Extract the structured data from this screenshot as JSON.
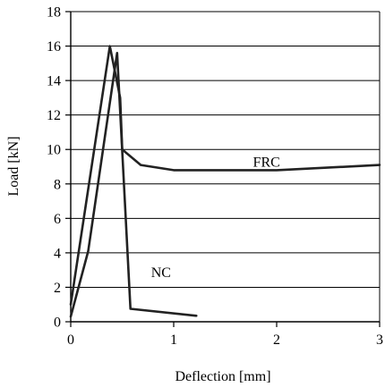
{
  "chart_data": {
    "type": "line",
    "xlabel": "Deflection [mm]",
    "ylabel": "Load [kN]",
    "xlim": [
      0,
      3
    ],
    "ylim": [
      0,
      18
    ],
    "xticks": [
      0,
      1,
      2,
      3
    ],
    "yticks": [
      0,
      2,
      4,
      6,
      8,
      10,
      12,
      14,
      16,
      18
    ],
    "grid": {
      "horizontal": true,
      "vertical": false
    },
    "series": [
      {
        "name": "FRC",
        "color": "#222222",
        "points": [
          [
            0.0,
            1.0
          ],
          [
            0.38,
            16.0
          ],
          [
            0.48,
            13.0
          ],
          [
            0.5,
            10.0
          ],
          [
            0.68,
            9.1
          ],
          [
            1.0,
            8.8
          ],
          [
            2.0,
            8.8
          ],
          [
            3.0,
            9.1
          ]
        ]
      },
      {
        "name": "NC",
        "color": "#222222",
        "points": [
          [
            0.0,
            0.3
          ],
          [
            0.17,
            4.1
          ],
          [
            0.45,
            15.6
          ],
          [
            0.58,
            0.75
          ],
          [
            1.22,
            0.35
          ]
        ]
      }
    ],
    "annotations": [
      {
        "text": "FRC",
        "x": 1.77,
        "y": 9.0
      },
      {
        "text": "NC",
        "x": 0.78,
        "y": 2.6
      }
    ]
  }
}
